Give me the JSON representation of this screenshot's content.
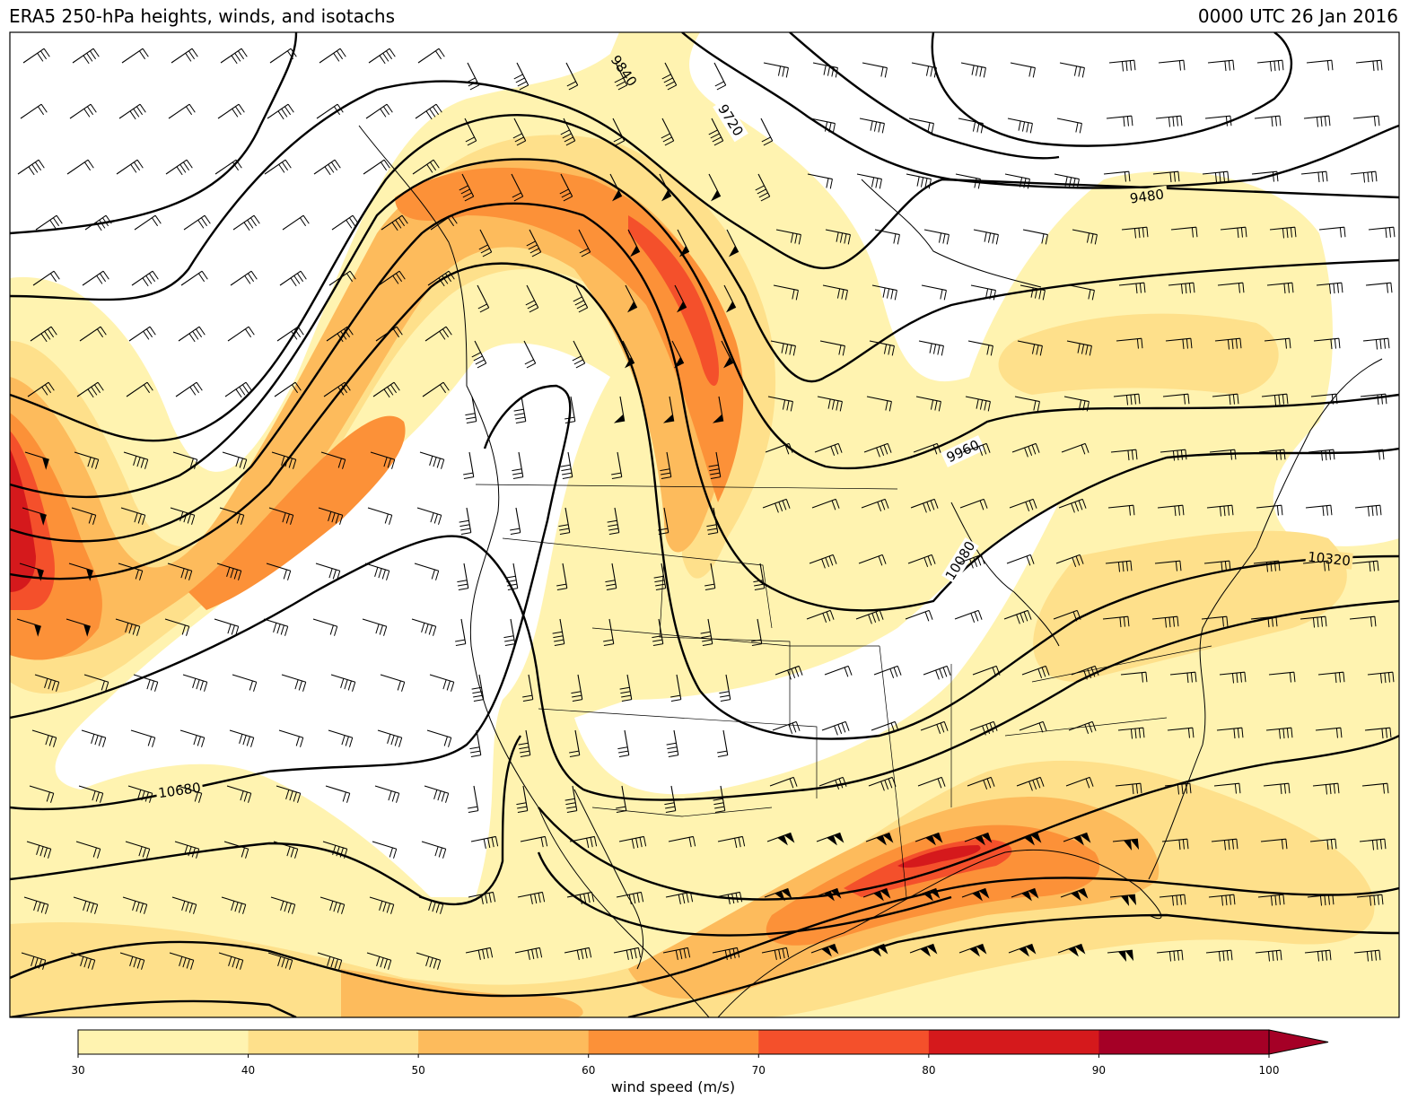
{
  "title": "ERA5 250-hPa heights, winds, and isotachs",
  "valid_time": "0000 UTC 26 Jan 2016",
  "contour_labels": [
    "9840",
    "9720",
    "9480",
    "9960",
    "10080",
    "10320",
    "10680"
  ],
  "colorbar": {
    "label": "wind speed (m/s)",
    "ticks": [
      "30",
      "40",
      "50",
      "60",
      "70",
      "80",
      "90",
      "100"
    ],
    "colors": [
      "#fff3b0",
      "#fee08b",
      "#fdbb5c",
      "#fc9138",
      "#f4502b",
      "#d5191c",
      "#a50026"
    ],
    "extend": "max"
  }
}
